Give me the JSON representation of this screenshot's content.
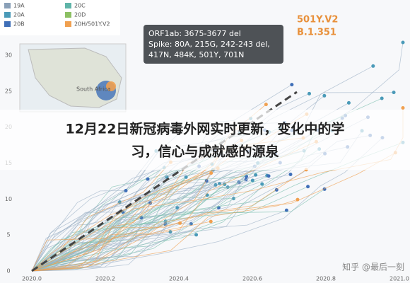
{
  "title": {
    "line1": "12月22日新冠病毒外网实时更新，变化中的学",
    "line2": "习，信心与成就感的源泉"
  },
  "legend": [
    {
      "label": "19A",
      "color": "#8aa0b8"
    },
    {
      "label": "20A",
      "color": "#4a9ab8"
    },
    {
      "label": "20B",
      "color": "#3f6fb8"
    },
    {
      "label": "20C",
      "color": "#5fb4a8"
    },
    {
      "label": "20D",
      "color": "#8cc063"
    },
    {
      "label": "20H/501Y.V2",
      "color": "#f0a050"
    }
  ],
  "annotation": {
    "lines": [
      "ORF1ab: 3675-3677 del",
      "Spike: 80A, 215G, 242-243 del,",
      "417N, 484K, 501Y, 701N"
    ]
  },
  "variant": {
    "name": "501Y.V2",
    "lineage": "B.1.351"
  },
  "map_label": "South Africa",
  "y_tick_labels": [
    "30",
    "25",
    "20",
    "15",
    "10",
    "5",
    "0"
  ],
  "x_tick_labels": [
    "2020.0",
    "2020.2",
    "2020.4",
    "2020.6",
    "2020.8",
    "2021.0"
  ],
  "watermark": "知乎 @最后一刻"
}
